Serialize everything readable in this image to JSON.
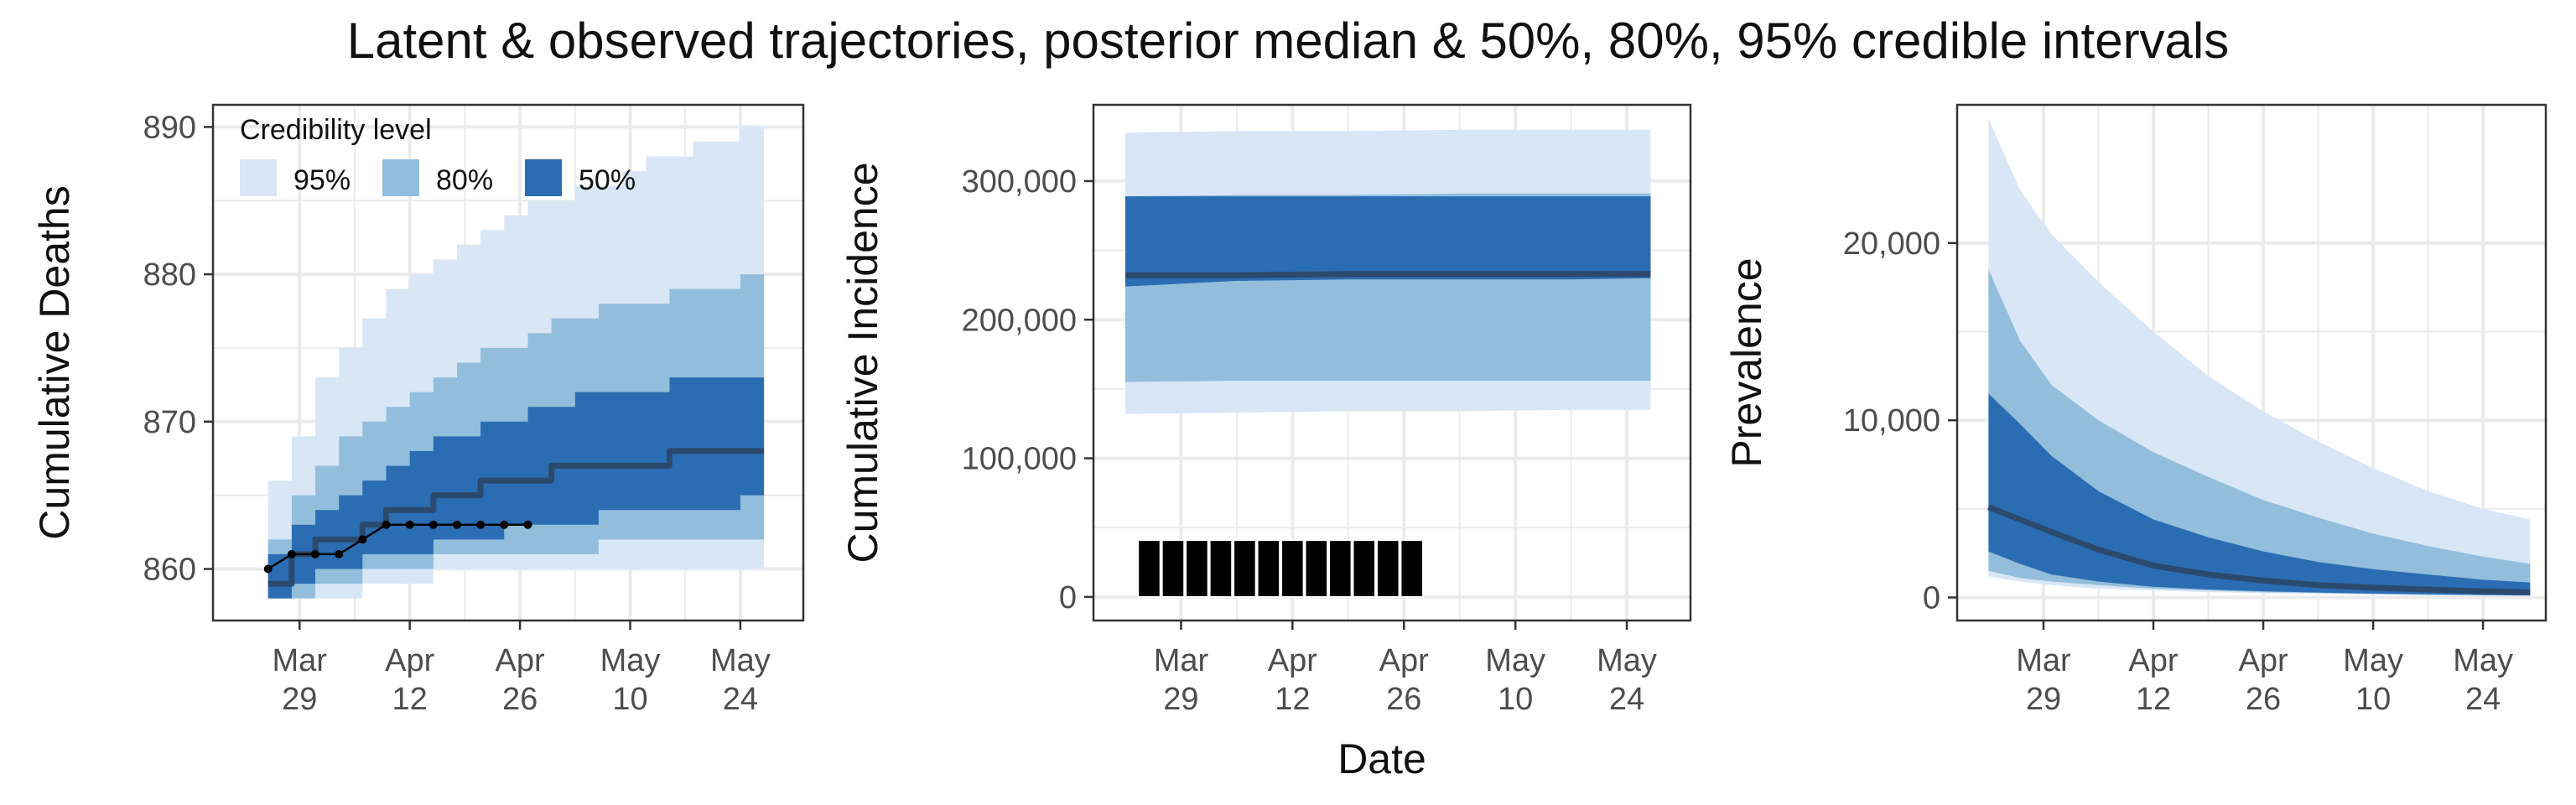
{
  "title": "Latent & observed trajectories, posterior median & 50%, 80%, 95% credible intervals",
  "shared_xlabel": "Date",
  "legend": {
    "title": "Credibility level",
    "entries": [
      {
        "label": "95%",
        "color": "#d8e6f5"
      },
      {
        "label": "80%",
        "color": "#92bedc"
      },
      {
        "label": "50%",
        "color": "#2b6db2"
      }
    ],
    "placement": "top-left"
  },
  "colors": {
    "band95": "#d8e6f5",
    "band80": "#92bedc",
    "band50": "#2b6db2",
    "median": "#2c4a6e",
    "observed": "#000000",
    "grid": "#ebebeb",
    "panel_border": "#333333"
  },
  "chart_data": [
    {
      "type": "area",
      "ylabel": "Cumulative Deaths",
      "x_range": [
        "2020-03-18",
        "2020-06-01"
      ],
      "x_ticks": [
        "2020-03-29",
        "2020-04-12",
        "2020-04-26",
        "2020-05-10",
        "2020-05-24"
      ],
      "x_tick_labels": [
        [
          "Mar",
          "29"
        ],
        [
          "Apr",
          "12"
        ],
        [
          "Apr",
          "26"
        ],
        [
          "May",
          "10"
        ],
        [
          "May",
          "24"
        ]
      ],
      "ylim": [
        856.5,
        891.5
      ],
      "y_ticks": [
        860,
        870,
        880,
        890
      ],
      "y_tick_labels": [
        "860",
        "870",
        "880",
        "890"
      ],
      "grid": true,
      "step": true,
      "bands": {
        "x": [
          "2020-03-25",
          "2020-03-28",
          "2020-03-31",
          "2020-04-03",
          "2020-04-06",
          "2020-04-09",
          "2020-04-12",
          "2020-04-15",
          "2020-04-18",
          "2020-04-21",
          "2020-04-24",
          "2020-04-27",
          "2020-04-30",
          "2020-05-03",
          "2020-05-06",
          "2020-05-09",
          "2020-05-12",
          "2020-05-15",
          "2020-05-18",
          "2020-05-21",
          "2020-05-24",
          "2020-05-27"
        ],
        "lo95": [
          858,
          858,
          858,
          858,
          859,
          859,
          859,
          860,
          860,
          860,
          860,
          860,
          860,
          860,
          860,
          860,
          860,
          860,
          860,
          860,
          860,
          860
        ],
        "hi95": [
          866,
          869,
          873,
          875,
          877,
          879,
          880,
          881,
          882,
          883,
          884,
          885,
          885,
          886,
          886,
          887,
          888,
          888,
          889,
          889,
          890,
          890
        ],
        "lo80": [
          858,
          858,
          859,
          859,
          860,
          860,
          860,
          861,
          861,
          861,
          861,
          861,
          861,
          861,
          862,
          862,
          862,
          862,
          862,
          862,
          862,
          862
        ],
        "hi80": [
          862,
          865,
          867,
          869,
          870,
          871,
          872,
          873,
          874,
          875,
          875,
          876,
          877,
          877,
          878,
          878,
          878,
          879,
          879,
          879,
          880,
          880
        ],
        "lo50": [
          858,
          859,
          860,
          860,
          861,
          861,
          861,
          862,
          862,
          862,
          863,
          863,
          863,
          863,
          864,
          864,
          864,
          864,
          864,
          864,
          865,
          865
        ],
        "hi50": [
          861,
          863,
          864,
          865,
          866,
          867,
          868,
          869,
          869,
          870,
          870,
          871,
          871,
          872,
          872,
          872,
          872,
          873,
          873,
          873,
          873,
          873
        ],
        "median": [
          859,
          861,
          862,
          862,
          863,
          864,
          864,
          865,
          865,
          866,
          866,
          866,
          867,
          867,
          867,
          867,
          867,
          868,
          868,
          868,
          868,
          868
        ]
      },
      "observed": {
        "x": [
          "2020-03-25",
          "2020-03-28",
          "2020-03-31",
          "2020-04-03",
          "2020-04-06",
          "2020-04-09",
          "2020-04-12",
          "2020-04-15",
          "2020-04-18",
          "2020-04-21",
          "2020-04-24",
          "2020-04-27"
        ],
        "y": [
          860,
          861,
          861,
          861,
          862,
          863,
          863,
          863,
          863,
          863,
          863,
          863
        ]
      }
    },
    {
      "type": "area",
      "ylabel": "Cumulative Incidence",
      "x_range": [
        "2020-03-18",
        "2020-06-01"
      ],
      "x_ticks": [
        "2020-03-29",
        "2020-04-12",
        "2020-04-26",
        "2020-05-10",
        "2020-05-24"
      ],
      "x_tick_labels": [
        [
          "Mar",
          "29"
        ],
        [
          "Apr",
          "12"
        ],
        [
          "Apr",
          "26"
        ],
        [
          "May",
          "10"
        ],
        [
          "May",
          "24"
        ]
      ],
      "ylim": [
        -17000,
        355000
      ],
      "y_ticks": [
        0,
        100000,
        200000,
        300000
      ],
      "y_tick_labels": [
        "0",
        "100,000",
        "200,000",
        "300,000"
      ],
      "grid": true,
      "step": false,
      "bands": {
        "x": [
          "2020-03-22",
          "2020-04-05",
          "2020-04-19",
          "2020-05-03",
          "2020-05-17",
          "2020-05-27"
        ],
        "lo95": [
          132000,
          133000,
          134000,
          134000,
          135000,
          135000
        ],
        "hi95": [
          335000,
          336000,
          336000,
          337000,
          337000,
          337000
        ],
        "lo80": [
          155000,
          156000,
          156000,
          156000,
          156000,
          156000
        ],
        "hi80": [
          289000,
          290000,
          290000,
          291000,
          291000,
          291000
        ],
        "lo50": [
          224000,
          228000,
          229000,
          229000,
          229000,
          230000
        ],
        "hi50": [
          289000,
          289000,
          289000,
          289000,
          289000,
          289000
        ],
        "median": [
          232000,
          232000,
          233000,
          233000,
          233000,
          233000
        ]
      },
      "observed_bars": {
        "x": [
          "2020-03-25",
          "2020-03-28",
          "2020-03-31",
          "2020-04-03",
          "2020-04-06",
          "2020-04-09",
          "2020-04-12",
          "2020-04-15",
          "2020-04-18",
          "2020-04-21",
          "2020-04-24",
          "2020-04-27"
        ],
        "y": [
          41000,
          41000,
          41000,
          41000,
          41000,
          41000,
          41000,
          41000,
          41000,
          41000,
          41000,
          41000
        ],
        "width_days": 2.8
      }
    },
    {
      "type": "area",
      "ylabel": "Prevalence",
      "x_range": [
        "2020-03-18",
        "2020-06-01"
      ],
      "x_ticks": [
        "2020-03-29",
        "2020-04-12",
        "2020-04-26",
        "2020-05-10",
        "2020-05-24"
      ],
      "x_tick_labels": [
        [
          "Mar",
          "29"
        ],
        [
          "Apr",
          "12"
        ],
        [
          "Apr",
          "26"
        ],
        [
          "May",
          "10"
        ],
        [
          "May",
          "24"
        ]
      ],
      "ylim": [
        -1300,
        27800
      ],
      "y_ticks": [
        0,
        10000,
        20000
      ],
      "y_tick_labels": [
        "0",
        "10,000",
        "20,000"
      ],
      "grid": true,
      "step": false,
      "bands": {
        "x": [
          "2020-03-22",
          "2020-03-26",
          "2020-03-30",
          "2020-04-05",
          "2020-04-12",
          "2020-04-19",
          "2020-04-26",
          "2020-05-03",
          "2020-05-10",
          "2020-05-17",
          "2020-05-24",
          "2020-05-30"
        ],
        "lo95": [
          1200,
          900,
          700,
          500,
          400,
          300,
          250,
          200,
          150,
          120,
          100,
          80
        ],
        "hi95": [
          27000,
          23000,
          20500,
          17800,
          15000,
          12500,
          10500,
          8800,
          7300,
          6000,
          5000,
          4400
        ],
        "lo80": [
          1500,
          1100,
          900,
          700,
          500,
          400,
          300,
          250,
          200,
          150,
          120,
          100
        ],
        "hi80": [
          18500,
          14500,
          12000,
          10000,
          8200,
          6800,
          5500,
          4500,
          3600,
          2900,
          2300,
          1900
        ],
        "lo50": [
          2600,
          1900,
          1300,
          900,
          600,
          450,
          350,
          280,
          220,
          180,
          150,
          120
        ],
        "hi50": [
          11500,
          9800,
          8000,
          6000,
          4400,
          3400,
          2600,
          2000,
          1600,
          1300,
          1000,
          850
        ],
        "median": [
          5100,
          4400,
          3700,
          2700,
          1800,
          1300,
          950,
          700,
          550,
          450,
          350,
          300
        ]
      }
    }
  ]
}
